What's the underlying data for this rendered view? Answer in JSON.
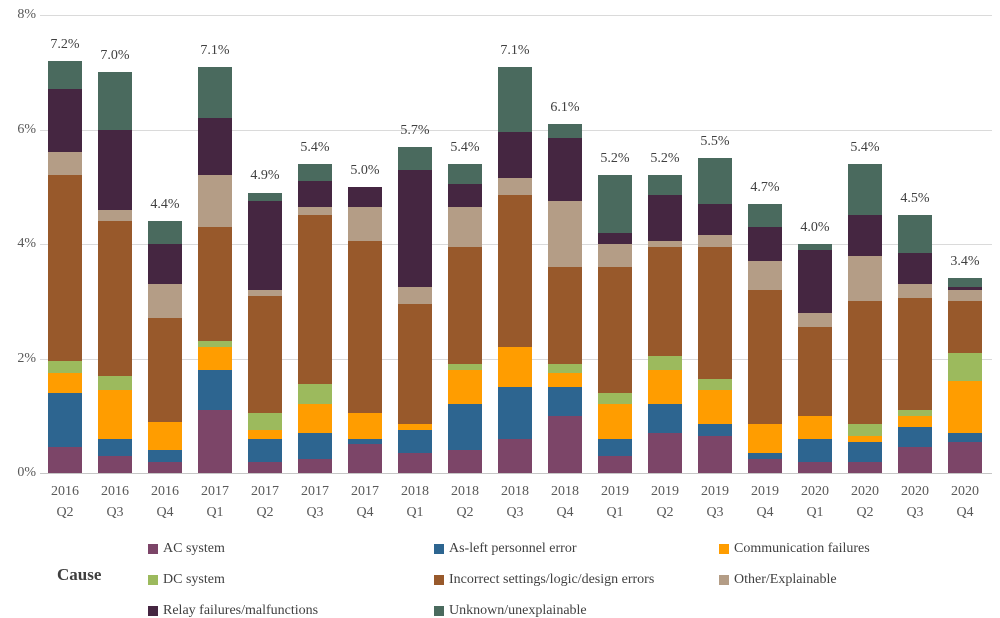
{
  "legend": {
    "title": "Cause"
  },
  "axes": {
    "y_ticks": [
      {
        "label": "8%",
        "value": 8
      },
      {
        "label": "6%",
        "value": 6
      },
      {
        "label": "4%",
        "value": 4
      },
      {
        "label": "2%",
        "value": 2
      },
      {
        "label": "0%",
        "value": 0
      }
    ]
  },
  "chart_data": {
    "type": "bar",
    "stacked": true,
    "title": "",
    "xlabel": "",
    "ylabel": "",
    "ylim": [
      0,
      8
    ],
    "grid": "horizontal-every-2%",
    "legend_position": "bottom",
    "categories": [
      {
        "year": "2016",
        "quarter": "Q2"
      },
      {
        "year": "2016",
        "quarter": "Q3"
      },
      {
        "year": "2016",
        "quarter": "Q4"
      },
      {
        "year": "2017",
        "quarter": "Q1"
      },
      {
        "year": "2017",
        "quarter": "Q2"
      },
      {
        "year": "2017",
        "quarter": "Q3"
      },
      {
        "year": "2017",
        "quarter": "Q4"
      },
      {
        "year": "2018",
        "quarter": "Q1"
      },
      {
        "year": "2018",
        "quarter": "Q2"
      },
      {
        "year": "2018",
        "quarter": "Q3"
      },
      {
        "year": "2018",
        "quarter": "Q4"
      },
      {
        "year": "2019",
        "quarter": "Q1"
      },
      {
        "year": "2019",
        "quarter": "Q2"
      },
      {
        "year": "2019",
        "quarter": "Q3"
      },
      {
        "year": "2019",
        "quarter": "Q4"
      },
      {
        "year": "2020",
        "quarter": "Q1"
      },
      {
        "year": "2020",
        "quarter": "Q2"
      },
      {
        "year": "2020",
        "quarter": "Q3"
      },
      {
        "year": "2020",
        "quarter": "Q4"
      }
    ],
    "total_labels": [
      "7.2%",
      "7.0%",
      "4.4%",
      "7.1%",
      "4.9%",
      "5.4%",
      "5.0%",
      "5.7%",
      "5.4%",
      "7.1%",
      "6.1%",
      "5.2%",
      "5.2%",
      "5.5%",
      "4.7%",
      "4.0%",
      "5.4%",
      "4.5%",
      "3.4%"
    ],
    "totals": [
      7.2,
      7.0,
      4.4,
      7.1,
      4.9,
      5.4,
      5.0,
      5.7,
      5.4,
      7.1,
      6.1,
      5.2,
      5.2,
      5.5,
      4.7,
      4.0,
      5.4,
      4.5,
      3.4
    ],
    "series": [
      {
        "name": "AC system",
        "color": "#7C4568",
        "values": [
          0.45,
          0.3,
          0.2,
          1.1,
          0.2,
          0.25,
          0.5,
          0.35,
          0.4,
          0.6,
          1.0,
          0.3,
          0.7,
          0.65,
          0.25,
          0.2,
          0.2,
          0.45,
          0.55
        ]
      },
      {
        "name": "As-left personnel error",
        "color": "#2D6590",
        "values": [
          0.95,
          0.3,
          0.2,
          0.7,
          0.4,
          0.45,
          0.1,
          0.4,
          0.8,
          0.9,
          0.5,
          0.3,
          0.5,
          0.2,
          0.1,
          0.4,
          0.35,
          0.35,
          0.15
        ]
      },
      {
        "name": "Communication failures",
        "color": "#FF9D00",
        "values": [
          0.35,
          0.85,
          0.5,
          0.4,
          0.15,
          0.5,
          0.45,
          0.1,
          0.6,
          0.7,
          0.25,
          0.6,
          0.6,
          0.6,
          0.5,
          0.4,
          0.1,
          0.2,
          0.9
        ]
      },
      {
        "name": "DC system",
        "color": "#9CBA5D",
        "values": [
          0.2,
          0.25,
          0,
          0.1,
          0.3,
          0.35,
          0,
          0,
          0.1,
          0,
          0.15,
          0.2,
          0.25,
          0.2,
          0,
          0,
          0.2,
          0.1,
          0.5
        ]
      },
      {
        "name": "Incorrect settings/logic/design errors",
        "color": "#98592B",
        "values": [
          3.25,
          2.7,
          1.8,
          2.0,
          2.05,
          2.95,
          3.0,
          2.1,
          2.05,
          2.65,
          1.7,
          2.2,
          1.9,
          2.3,
          2.35,
          1.55,
          2.15,
          1.95,
          0.9
        ]
      },
      {
        "name": "Other/Explainable",
        "color": "#B49D86",
        "values": [
          0.4,
          0.2,
          0.6,
          0.9,
          0.1,
          0.15,
          0.6,
          0.3,
          0.7,
          0.3,
          1.15,
          0.4,
          0.1,
          0.2,
          0.5,
          0.25,
          0.8,
          0.25,
          0.2
        ]
      },
      {
        "name": "Relay failures/malfunctions",
        "color": "#452641",
        "values": [
          1.1,
          1.4,
          0.7,
          1.0,
          1.55,
          0.45,
          0.35,
          2.05,
          0.4,
          0.8,
          1.1,
          0.2,
          0.8,
          0.55,
          0.6,
          1.1,
          0.7,
          0.55,
          0.05
        ]
      },
      {
        "name": "Unknown/unexplainable",
        "color": "#4A6A5E",
        "values": [
          0.5,
          1.0,
          0.4,
          0.9,
          0.15,
          0.3,
          0,
          0.4,
          0.35,
          1.15,
          0.25,
          1.0,
          0.35,
          0.8,
          0.4,
          0.1,
          0.9,
          0.65,
          0.15
        ]
      }
    ]
  }
}
